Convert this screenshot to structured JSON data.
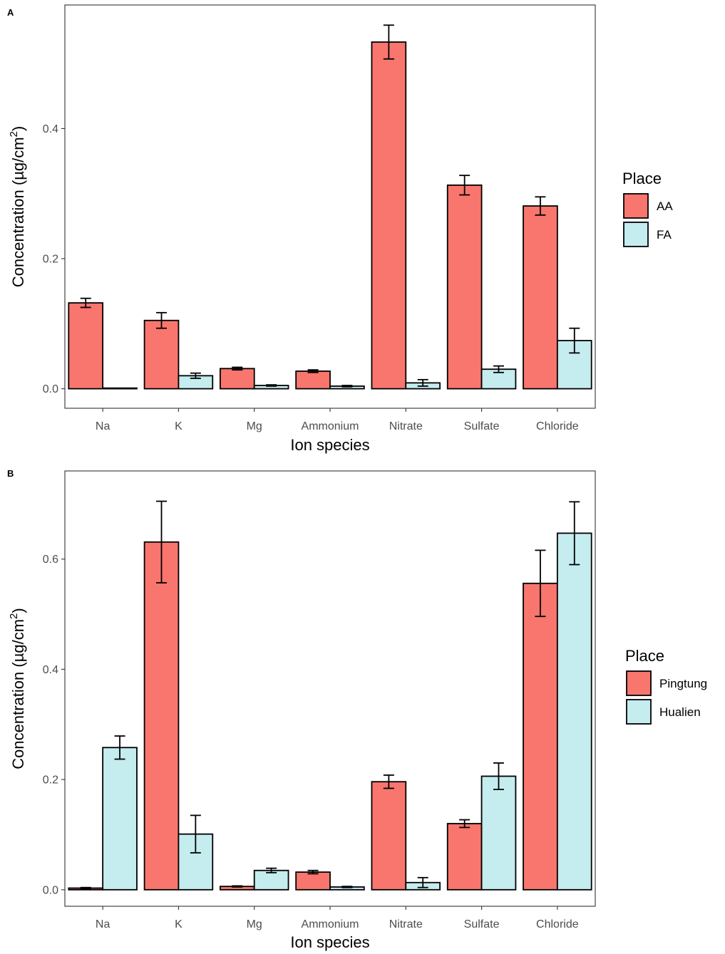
{
  "chart_data": [
    {
      "panel": "A",
      "type": "bar",
      "categories": [
        "Na",
        "K",
        "Mg",
        "Ammonium",
        "Nitrate",
        "Sulfate",
        "Chloride"
      ],
      "series": [
        {
          "name": "AA",
          "color": "#F8766D",
          "values": [
            0.132,
            0.105,
            0.031,
            0.027,
            0.533,
            0.313,
            0.281
          ],
          "errors": [
            0.007,
            0.012,
            0.002,
            0.002,
            0.026,
            0.015,
            0.014
          ]
        },
        {
          "name": "FA",
          "color": "#C5ECEF",
          "values": [
            0.001,
            0.02,
            0.005,
            0.004,
            0.009,
            0.03,
            0.074
          ],
          "errors": [
            0.0,
            0.004,
            0.001,
            0.001,
            0.005,
            0.005,
            0.019
          ]
        }
      ],
      "ylabel_main": "Concentration (µg/cm",
      "ylabel_sup": "2",
      "ylabel_end": ")",
      "xlabel": "Ion species",
      "legend_title": "Place",
      "ylim": [
        -0.03,
        0.59
      ],
      "yticks": [
        0.0,
        0.2,
        0.4
      ],
      "ytick_labels": [
        "0.0",
        "0.2",
        "0.4"
      ]
    },
    {
      "panel": "B",
      "type": "bar",
      "categories": [
        "Na",
        "K",
        "Mg",
        "Ammonium",
        "Nitrate",
        "Sulfate",
        "Chloride"
      ],
      "series": [
        {
          "name": "Pingtung",
          "color": "#F8766D",
          "values": [
            0.003,
            0.631,
            0.006,
            0.032,
            0.196,
            0.12,
            0.556
          ],
          "errors": [
            0.001,
            0.074,
            0.001,
            0.003,
            0.012,
            0.007,
            0.06
          ]
        },
        {
          "name": "Hualien",
          "color": "#C5ECEF",
          "values": [
            0.258,
            0.101,
            0.035,
            0.005,
            0.013,
            0.206,
            0.647
          ],
          "errors": [
            0.021,
            0.034,
            0.004,
            0.001,
            0.009,
            0.024,
            0.057
          ]
        }
      ],
      "ylabel_main": "Concentration (µg/cm",
      "ylabel_sup": "2",
      "ylabel_end": ")",
      "xlabel": "Ion species",
      "legend_title": "Place",
      "ylim": [
        -0.03,
        0.76
      ],
      "yticks": [
        0.0,
        0.2,
        0.4,
        0.6
      ],
      "ytick_labels": [
        "0.0",
        "0.2",
        "0.4",
        "0.6"
      ]
    }
  ]
}
